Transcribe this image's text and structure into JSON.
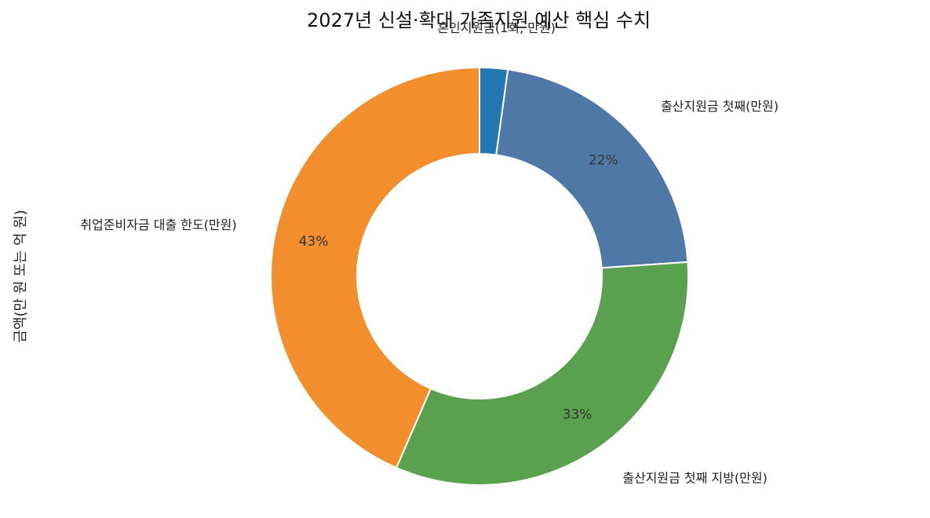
{
  "chart_data": {
    "type": "pie",
    "variant": "donut",
    "title": "2027년 신설·확대 가족지원 예산 핵심 수치",
    "ylabel": "금액(만 원 또는 억 원)",
    "categories": [
      "혼인지원금(1회, 만원)",
      "출산지원금 첫째(만원)",
      "출산지원금 첫째 지방(만원)",
      "취업준비자금 대출 한도(만원)"
    ],
    "values": [
      50,
      500,
      750,
      1000
    ],
    "percent_labels": [
      "",
      "22%",
      "33%",
      "43%"
    ],
    "colors": [
      "#2276b4",
      "#4e79a7",
      "#59a14f",
      "#f28e2b"
    ],
    "legend": "none"
  }
}
